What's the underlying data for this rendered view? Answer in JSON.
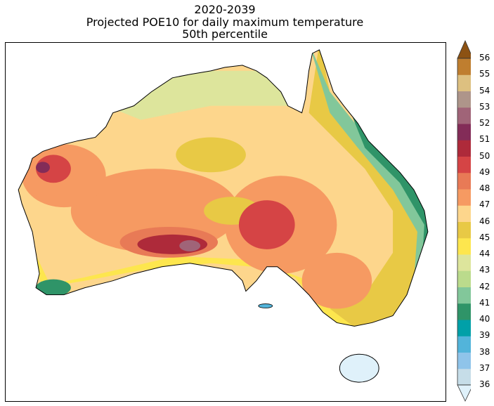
{
  "title": {
    "line1": "2020-2039",
    "line2": "Projected POE10 for daily maximum temperature",
    "line3": "50th percentile"
  },
  "colorbar": {
    "ticks": [
      36,
      37,
      38,
      39,
      40,
      41,
      42,
      43,
      44,
      45,
      46,
      47,
      48,
      49,
      50,
      51,
      52,
      53,
      54,
      55,
      56
    ],
    "under_color": "#dff1fa",
    "over_color": "#8c5213",
    "colors": [
      "#c6dde8",
      "#8fc4ea",
      "#52b4da",
      "#00a0a8",
      "#2f9468",
      "#82c79a",
      "#bbdb8c",
      "#dde59c",
      "#fde64e",
      "#e8c945",
      "#fdd68c",
      "#f69a62",
      "#e87a56",
      "#d54445",
      "#ae2a3a",
      "#832c58",
      "#a06478",
      "#ae958a",
      "#ddc080",
      "#bf7e2f"
    ]
  }
}
